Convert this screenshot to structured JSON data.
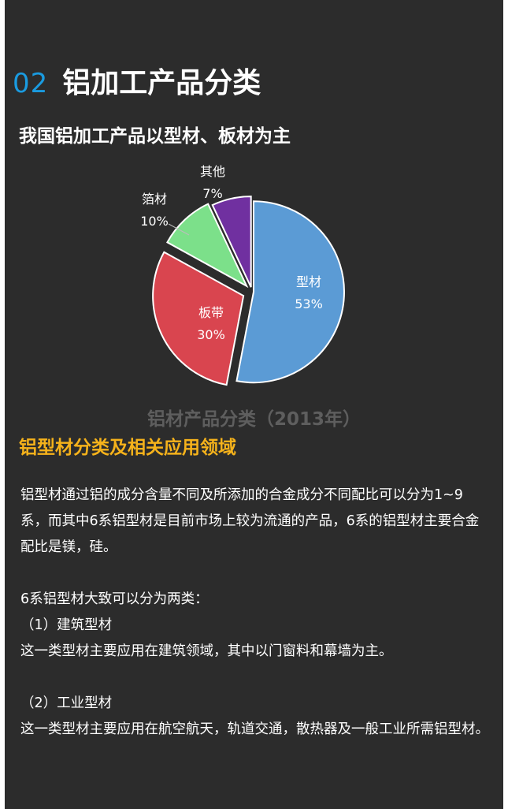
{
  "header": {
    "section_number": "02",
    "section_title": "铝加工产品分类"
  },
  "subtitle": "我国铝加工产品以型材、板材为主",
  "chart_data": {
    "type": "pie",
    "title": "铝材产品分类（2013年）",
    "slices": [
      {
        "label": "型材",
        "value": 53,
        "value_label": "53%",
        "color": "#5b9bd5"
      },
      {
        "label": "板带",
        "value": 30,
        "value_label": "30%",
        "color": "#d9454f"
      },
      {
        "label": "箔材",
        "value": 10,
        "value_label": "10%",
        "color": "#7ce08a"
      },
      {
        "label": "其他",
        "value": 7,
        "value_label": "7%",
        "color": "#7030a0"
      }
    ],
    "start_angle_deg": 0,
    "direction": "clockwise",
    "label_color": "#ffffff",
    "border_color": "#ffffff"
  },
  "section2": {
    "title": "铝型材分类及相关应用领域"
  },
  "body": {
    "para1": "铝型材通过铝的成分含量不同及所添加的合金成分不同配比可以分为1~9系，而其中6系铝型材是目前市场上较为流通的产品，6系的铝型材主要合金配比是镁，硅。",
    "para2": "6系铝型材大致可以分为两类：",
    "item1_title": "（1）建筑型材",
    "item1_text": "这一类型材主要应用在建筑领域，其中以门窗料和幕墙为主。",
    "item2_title": "（2）工业型材",
    "item2_text": "这一类型材主要应用在航空航天，轨道交通，散热器及一般工业所需铝型材。"
  },
  "colors": {
    "panel_background": "#2c2c2c",
    "accent_blue": "#1a9be0",
    "accent_orange": "#f5b21b",
    "caption_gray": "#5e5e5e"
  }
}
